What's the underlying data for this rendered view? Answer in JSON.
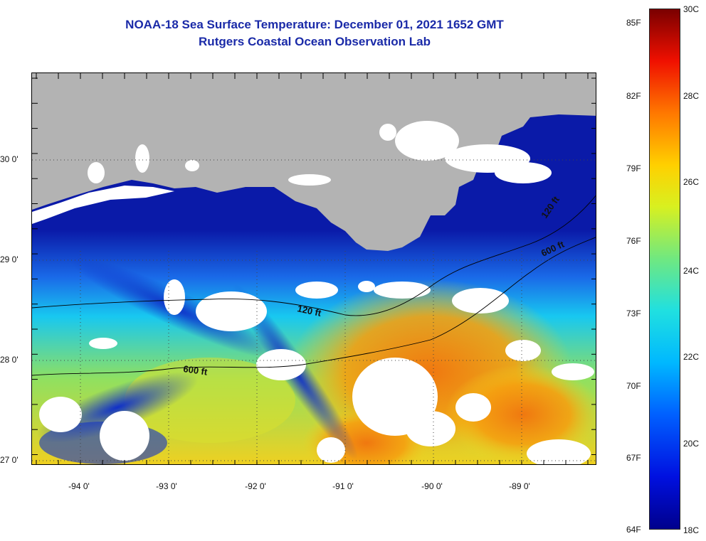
{
  "title": {
    "line1": "NOAA-18 Sea Surface Temperature:  December 01, 2021 1652 GMT",
    "line2": "Rutgers Coastal Ocean Observation Lab"
  },
  "axes": {
    "latitude_labels": [
      "30 0'",
      "29 0'",
      "28 0'",
      "27 0'"
    ],
    "longitude_labels": [
      "-94 0'",
      "-93 0'",
      "-92 0'",
      "-91 0'",
      "-90 0'",
      "-89 0'"
    ]
  },
  "contours": {
    "shallow_label": "120 ft",
    "deep_label": "600 ft"
  },
  "colorbar": {
    "fahrenheit_labels": [
      "85F",
      "82F",
      "79F",
      "76F",
      "73F",
      "70F",
      "67F",
      "64F"
    ],
    "celsius_labels": [
      "30C",
      "28C",
      "26C",
      "24C",
      "22C",
      "20C",
      "18C"
    ],
    "min_c": 18,
    "max_c": 30
  },
  "colors": {
    "title": "#1a2aa8",
    "land": "#b3b3b3",
    "cloud": "#ffffff",
    "contour": "#000000"
  }
}
